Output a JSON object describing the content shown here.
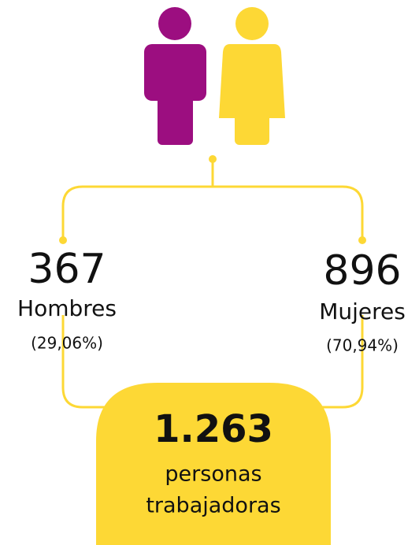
{
  "men": {
    "count": "367",
    "label": "Hombres",
    "share": "(29,06%)"
  },
  "women": {
    "count": "896",
    "label": "Mujeres",
    "share": "(70,94%)"
  },
  "total": {
    "count": "1.263",
    "line1": "personas",
    "line2": "trabajadoras"
  }
}
